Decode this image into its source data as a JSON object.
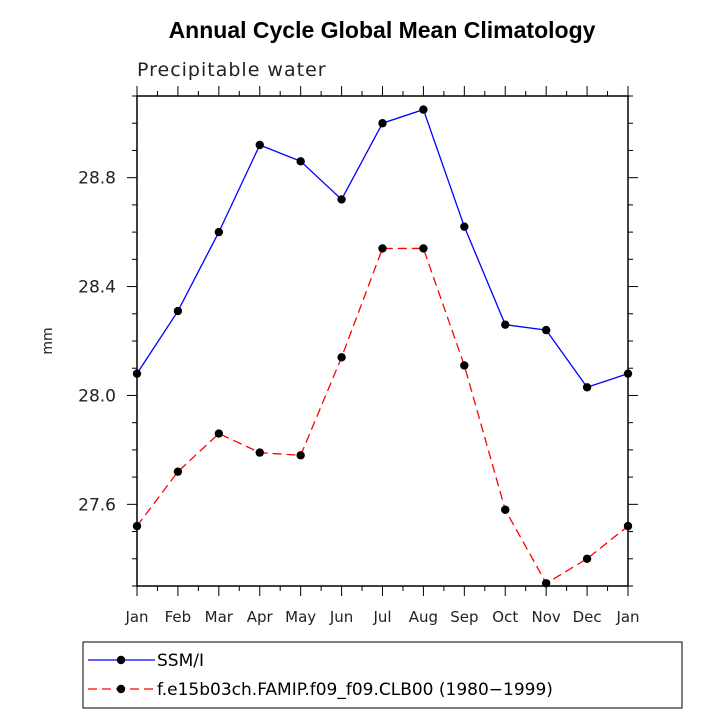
{
  "chart_data": {
    "type": "line",
    "title": "Annual Cycle Global Mean Climatology",
    "subtitle": "Precipitable water",
    "xlabel": "",
    "ylabel": "mm",
    "categories": [
      "Jan",
      "Feb",
      "Mar",
      "Apr",
      "May",
      "Jun",
      "Jul",
      "Aug",
      "Sep",
      "Oct",
      "Nov",
      "Dec",
      "Jan"
    ],
    "yticks": [
      "27.6",
      "28.0",
      "28.4",
      "28.8"
    ],
    "ylim": [
      27.3,
      29.1
    ],
    "series": [
      {
        "name": "SSM/I",
        "color": "#0000ff",
        "dash": "solid",
        "values": [
          28.08,
          28.31,
          28.6,
          28.92,
          28.86,
          28.72,
          29.0,
          29.05,
          28.62,
          28.26,
          28.24,
          28.03,
          28.08
        ]
      },
      {
        "name": "f.e15b03ch.FAMIP.f09_f09.CLB00 (1980−1999)",
        "color": "#ff0000",
        "dash": "dashed",
        "values": [
          27.52,
          27.72,
          27.86,
          27.79,
          27.78,
          28.14,
          28.54,
          28.54,
          28.11,
          27.58,
          27.31,
          27.4,
          27.52
        ]
      }
    ],
    "legend_position": "bottom"
  }
}
